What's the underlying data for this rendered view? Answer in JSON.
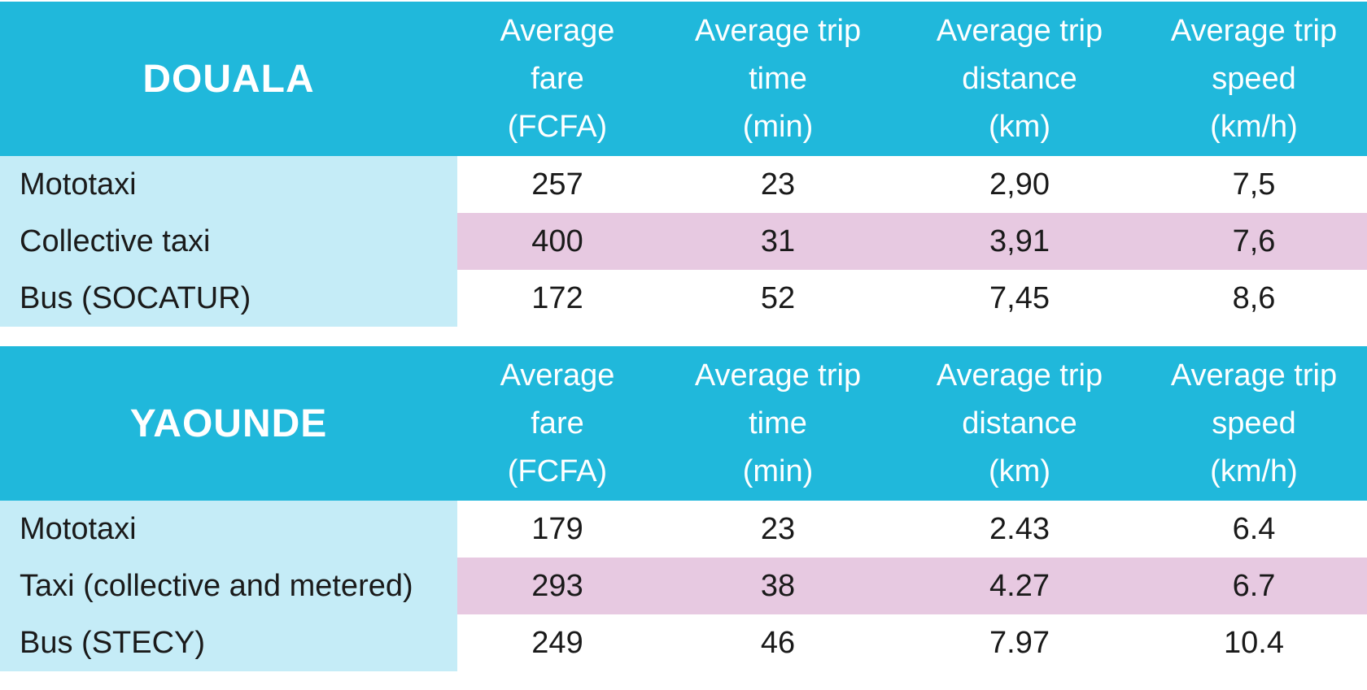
{
  "chart_data": [
    {
      "type": "table",
      "title": "DOUALA",
      "columns": [
        [
          "Average",
          "fare",
          "(FCFA)"
        ],
        [
          "Average trip",
          "time",
          "(min)"
        ],
        [
          "Average trip",
          "distance",
          "(km)"
        ],
        [
          "Average trip",
          "speed",
          "(km/h)"
        ]
      ],
      "rows": [
        {
          "label": "Mototaxi",
          "values": [
            "257",
            "23",
            "2,90",
            "7,5"
          ]
        },
        {
          "label": "Collective taxi",
          "values": [
            "400",
            "31",
            "3,91",
            "7,6"
          ]
        },
        {
          "label": "Bus (SOCATUR)",
          "values": [
            "172",
            "52",
            "7,45",
            "8,6"
          ]
        }
      ]
    },
    {
      "type": "table",
      "title": "YAOUNDE",
      "columns": [
        [
          "Average",
          "fare",
          "(FCFA)"
        ],
        [
          "Average trip",
          "time",
          "(min)"
        ],
        [
          "Average trip",
          "distance",
          "(km)"
        ],
        [
          "Average trip",
          "speed",
          "(km/h)"
        ]
      ],
      "rows": [
        {
          "label": "Mototaxi",
          "values": [
            "179",
            "23",
            "2.43",
            "6.4"
          ]
        },
        {
          "label": "Taxi (collective and metered)",
          "values": [
            "293",
            "38",
            "4.27",
            "6.7"
          ]
        },
        {
          "label": "Bus (STECY)",
          "values": [
            "249",
            "46",
            "7.97",
            "10.4"
          ]
        }
      ]
    }
  ],
  "colors": {
    "header": "#20b8db",
    "label_column": "#c5ecf7",
    "highlight_row": "#e7c9e1"
  }
}
